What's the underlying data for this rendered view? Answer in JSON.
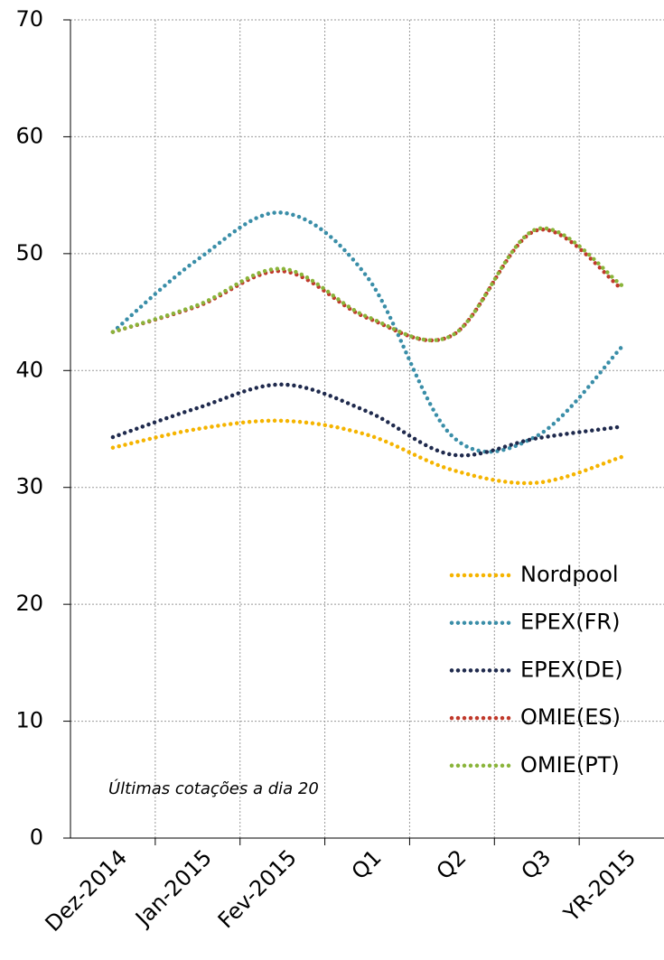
{
  "chart_data": {
    "type": "line",
    "categories": [
      "Dez-2014",
      "Jan-2015",
      "Fev-2015",
      "Q1",
      "Q2",
      "Q3",
      "YR-2015"
    ],
    "series": [
      {
        "name": "Nordpool",
        "color": "#f5b400",
        "values": [
          33.4,
          35.0,
          35.7,
          34.5,
          31.5,
          30.4,
          32.6
        ]
      },
      {
        "name": "EPEX(FR)",
        "color": "#3a8ea8",
        "values": [
          43.3,
          49.5,
          53.5,
          48.0,
          34.4,
          34.4,
          42.0
        ]
      },
      {
        "name": "EPEX(DE)",
        "color": "#1f2a4d",
        "values": [
          34.3,
          36.8,
          38.8,
          36.5,
          32.8,
          34.2,
          35.2
        ]
      },
      {
        "name": "OMIE(ES)",
        "color": "#c0392b",
        "values": [
          43.3,
          45.5,
          48.5,
          44.5,
          43.0,
          52.0,
          47.0
        ]
      },
      {
        "name": "OMIE(PT)",
        "color": "#8ab43a",
        "values": [
          43.3,
          45.6,
          48.7,
          44.6,
          43.0,
          52.1,
          47.3
        ]
      }
    ],
    "annotation": "Últimas cotações a dia 20",
    "ylim": [
      0,
      70
    ],
    "yticks": [
      0,
      10,
      20,
      30,
      40,
      50,
      60,
      70
    ],
    "grid": true,
    "legend": "lower right"
  }
}
